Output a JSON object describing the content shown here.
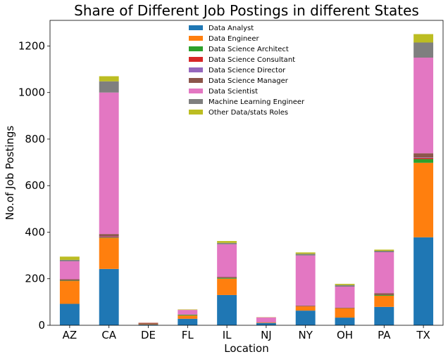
{
  "chart_data": {
    "type": "bar",
    "stacked": true,
    "title": "Share of Different Job Postings in different States",
    "xlabel": "Location",
    "ylabel": "No.of Job Postings",
    "ylim": [
      0,
      1310
    ],
    "yticks": [
      0,
      200,
      400,
      600,
      800,
      1000,
      1200
    ],
    "grid": false,
    "legend_position": "top-center",
    "categories": [
      "AZ",
      "CA",
      "DE",
      "FL",
      "IL",
      "NJ",
      "NY",
      "OH",
      "PA",
      "TX"
    ],
    "series": [
      {
        "name": "Data Analyst",
        "color": "#1f77b4",
        "values": [
          92,
          242,
          3,
          28,
          130,
          10,
          63,
          33,
          79,
          378
        ]
      },
      {
        "name": "Data Engineer",
        "color": "#ff7f0e",
        "values": [
          98,
          133,
          2,
          14,
          70,
          2,
          18,
          40,
          48,
          320
        ]
      },
      {
        "name": "Data Science Architect",
        "color": "#2ca02c",
        "values": [
          2,
          2,
          0,
          3,
          3,
          0,
          0,
          0,
          3,
          16
        ]
      },
      {
        "name": "Data Science Consultant",
        "color": "#d62728",
        "values": [
          1,
          3,
          0,
          0,
          0,
          0,
          1,
          0,
          0,
          5
        ]
      },
      {
        "name": "Data Science Director",
        "color": "#9467bd",
        "values": [
          0,
          2,
          0,
          0,
          0,
          0,
          0,
          0,
          0,
          2
        ]
      },
      {
        "name": "Data Science Manager",
        "color": "#8c564b",
        "values": [
          5,
          10,
          4,
          1,
          5,
          1,
          3,
          3,
          8,
          18
        ]
      },
      {
        "name": "Data Scientist",
        "color": "#e377c2",
        "values": [
          77,
          608,
          2,
          20,
          140,
          21,
          215,
          90,
          176,
          411
        ]
      },
      {
        "name": "Machine Learning Engineer",
        "color": "#7f7f7f",
        "values": [
          6,
          48,
          0,
          0,
          6,
          0,
          7,
          7,
          6,
          65
        ]
      },
      {
        "name": "Other Data/stats Roles",
        "color": "#bcbd22",
        "values": [
          14,
          22,
          1,
          2,
          8,
          1,
          6,
          5,
          5,
          36
        ]
      }
    ]
  }
}
